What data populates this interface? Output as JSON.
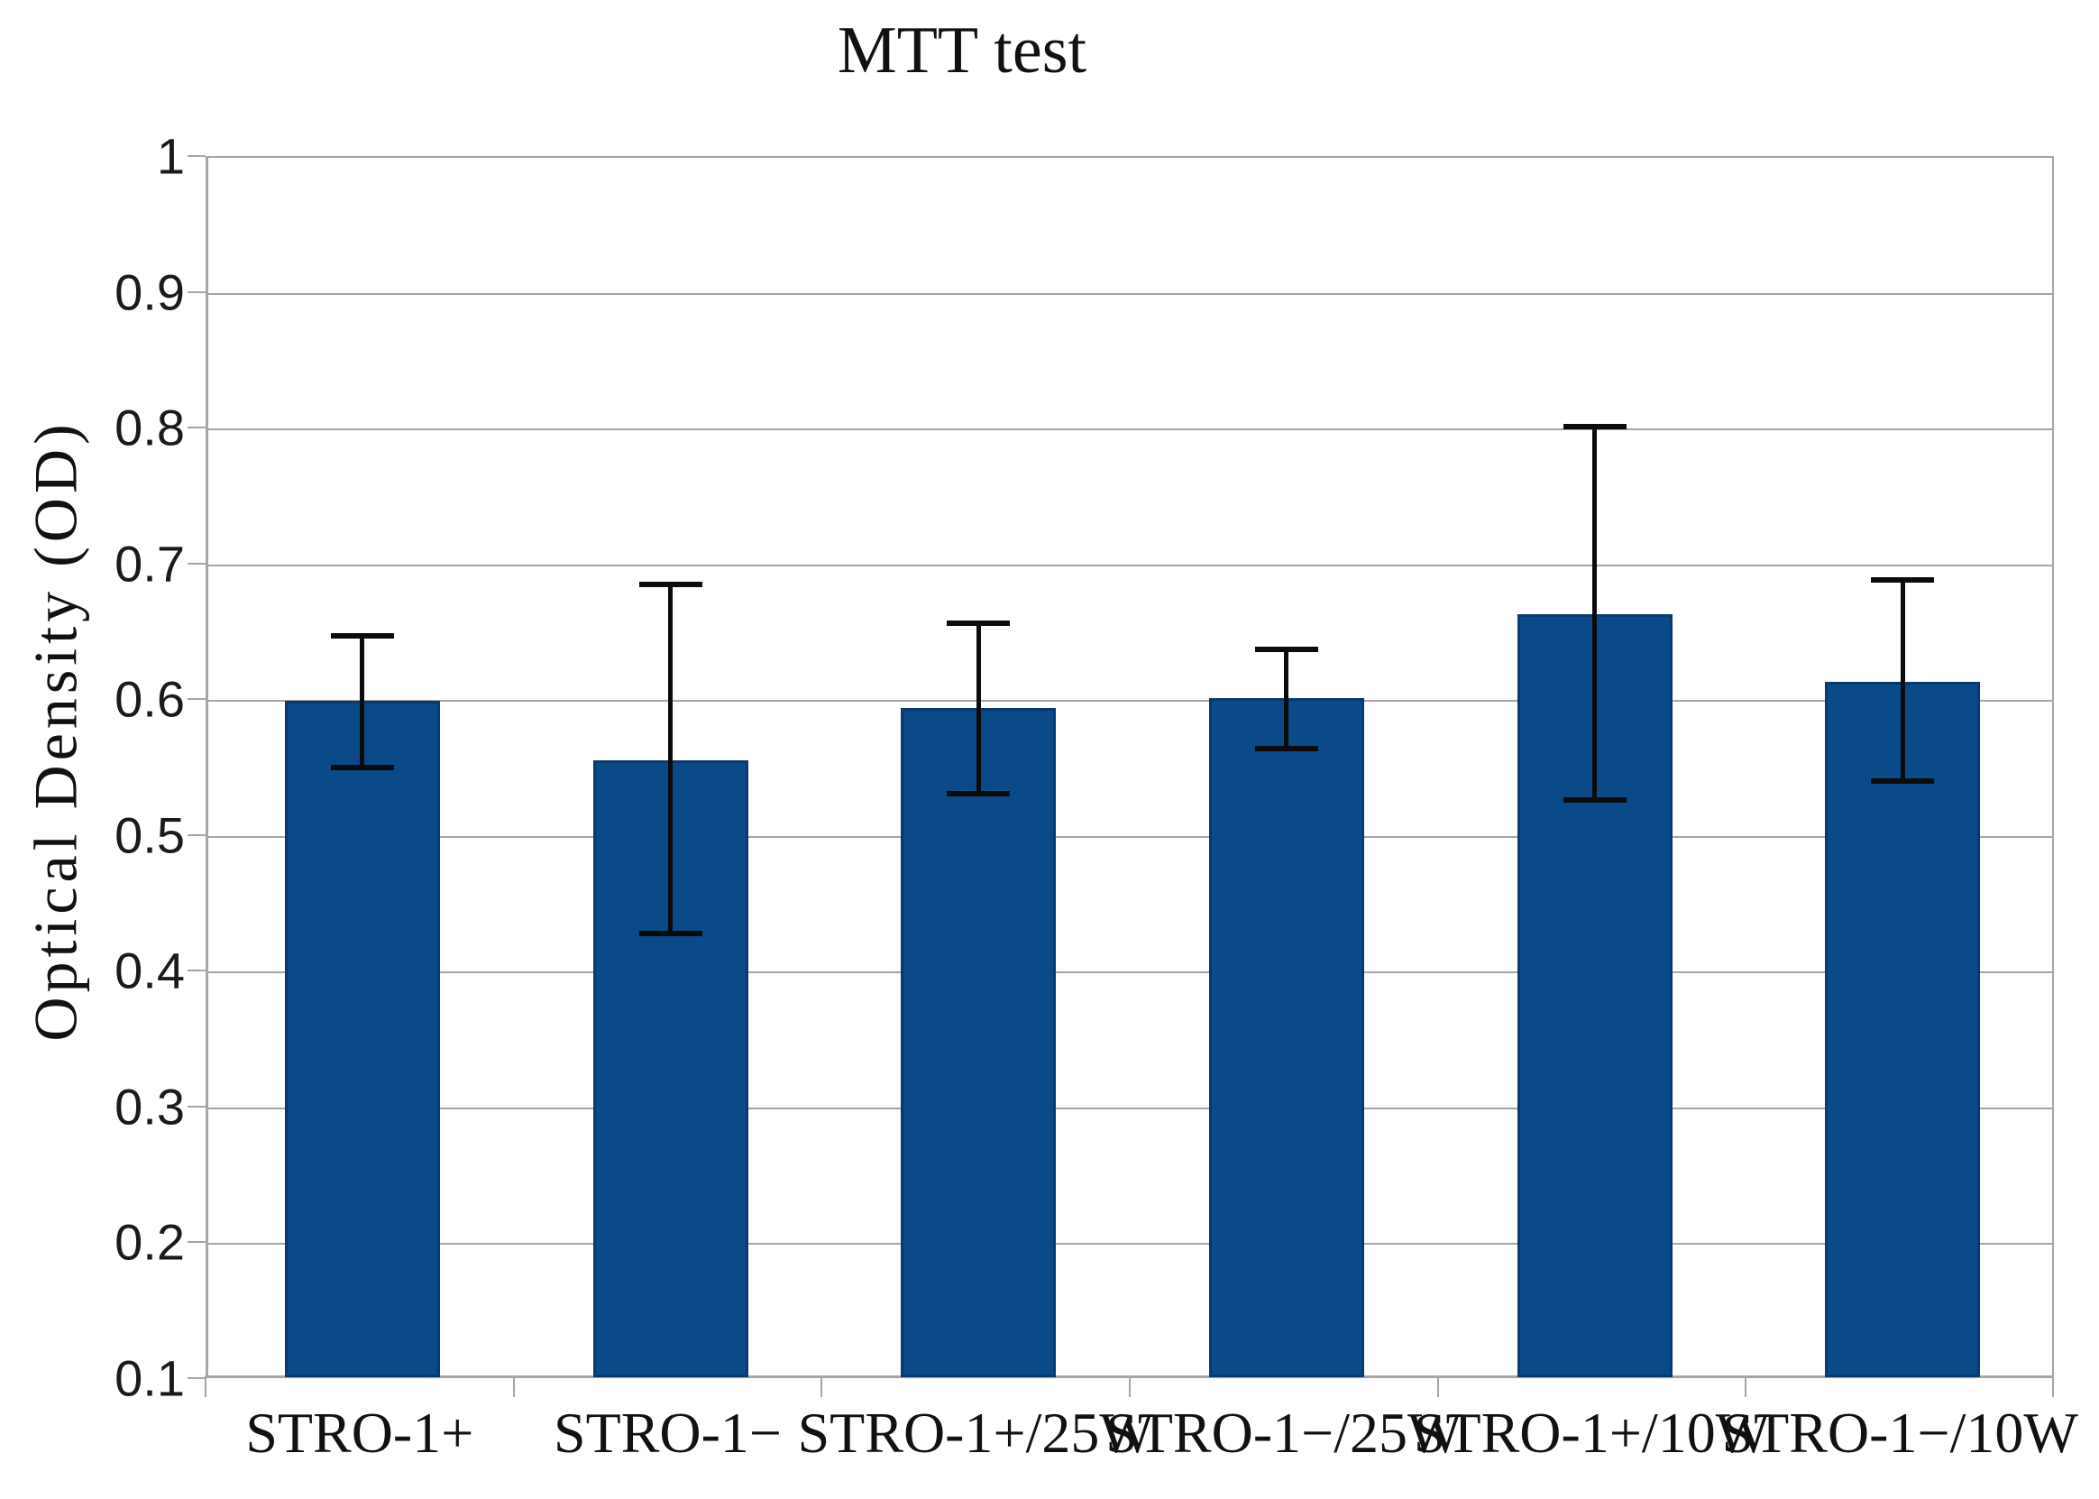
{
  "chart_data": {
    "type": "bar",
    "title": "MTT test",
    "xlabel": "",
    "ylabel": "Optical Density (OD)",
    "categories": [
      "STRO-1+",
      "STRO-1−",
      "STRO-1+/25W",
      "STRO-1−/25W",
      "STRO-1+/10W",
      "STRO-1−/10W"
    ],
    "values": [
      0.6,
      0.556,
      0.595,
      0.602,
      0.664,
      0.614
    ],
    "error_low": [
      0.551,
      0.429,
      0.532,
      0.565,
      0.527,
      0.541
    ],
    "error_high": [
      0.648,
      0.686,
      0.657,
      0.638,
      0.802,
      0.689
    ],
    "ylim": [
      0.1,
      1.0
    ],
    "ytick_step": 0.1,
    "ytick_labels": [
      "0.1",
      "0.2",
      "0.3",
      "0.4",
      "0.5",
      "0.6",
      "0.7",
      "0.8",
      "0.9",
      "1"
    ],
    "grid": true,
    "legend_position": "none",
    "colors": {
      "bar": "#0a4a88",
      "bar_border": "#083a6e",
      "grid": "#a6a6a6",
      "error_bar": "#0b0b0b",
      "text": "#111111",
      "background": "#ffffff"
    }
  }
}
